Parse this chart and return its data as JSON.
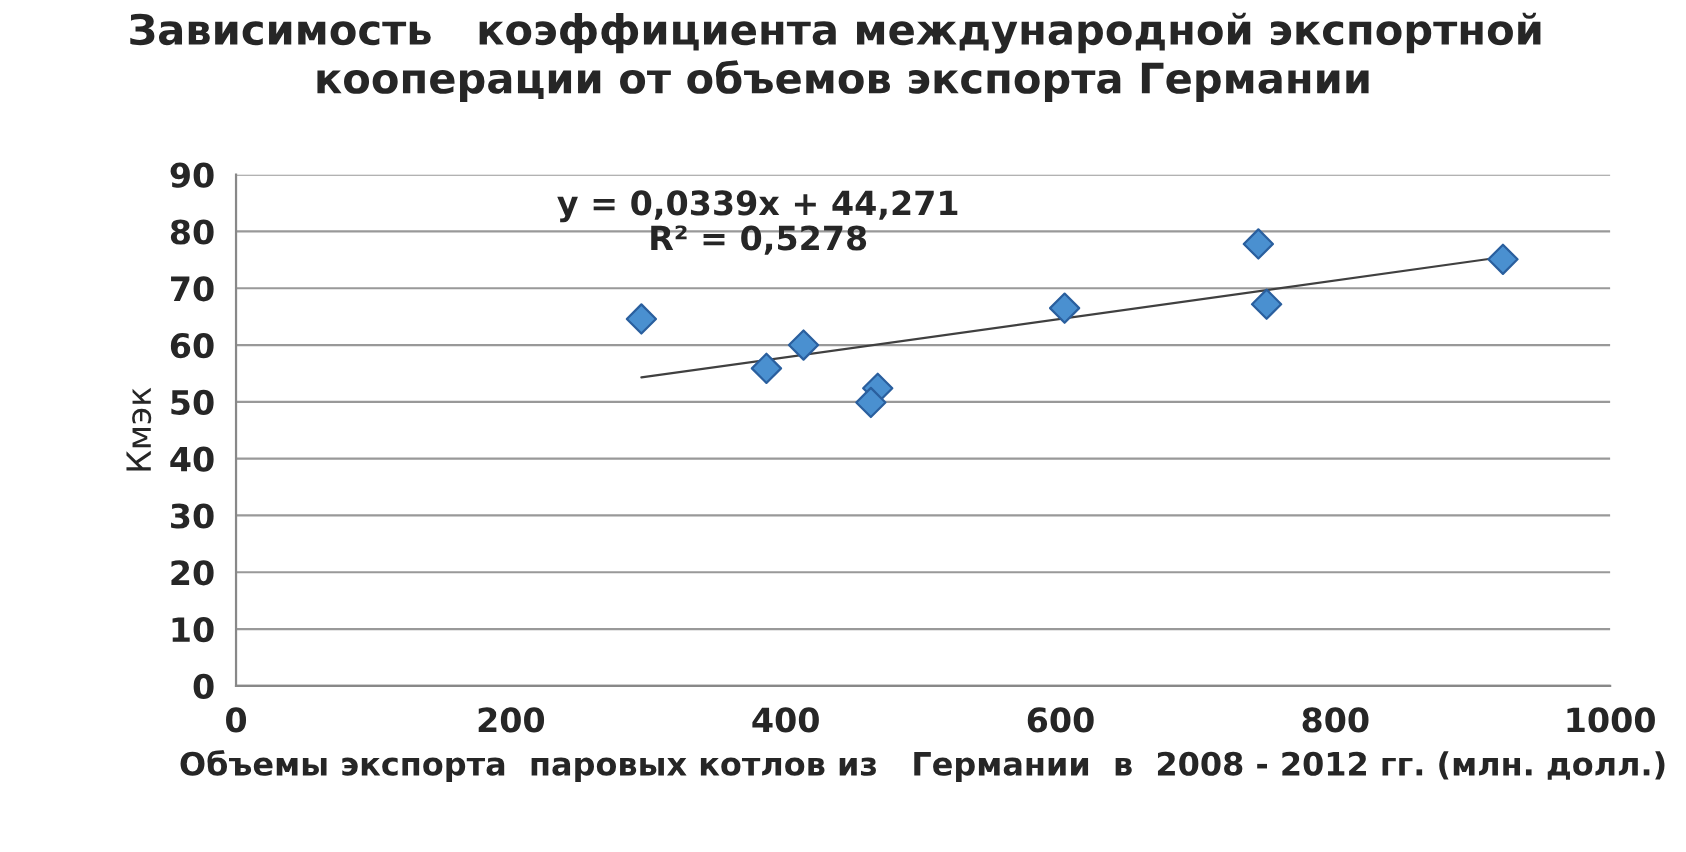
{
  "chart_data": {
    "type": "scatter",
    "title": "Зависимость   коэффициента международной экспортной  кооперации от объемов экспорта Германии",
    "xlabel": "Объемы экспорта  паровых котлов из   Германии  в  2008 - 2012 гг. (млн. долл.)",
    "ylabel": "Кмэк",
    "series": [
      {
        "color": "#4a90d0",
        "marker": "diamond",
        "x": [
          295,
          386,
          413,
          467,
          462,
          603,
          744,
          750,
          922
        ],
        "values": [
          64.6,
          55.9,
          60.0,
          52.4,
          49.9,
          66.5,
          77.8,
          67.2,
          75.1
        ]
      },
      {
        "type": "line",
        "color": "#404040",
        "marker": "none",
        "x": [
          295,
          922
        ],
        "values": [
          54.3,
          75.5
        ]
      }
    ],
    "annotations": [
      "y = 0,0339x + 44,271\nR² = 0,5278"
    ],
    "xlim": [
      0,
      1000
    ],
    "xticks": [
      0,
      200,
      400,
      600,
      800,
      1000
    ],
    "ylim": [
      0,
      90
    ],
    "yticks": [
      0,
      10,
      20,
      30,
      40,
      50,
      60,
      70,
      80,
      90
    ],
    "grid": "y",
    "legend": false
  }
}
